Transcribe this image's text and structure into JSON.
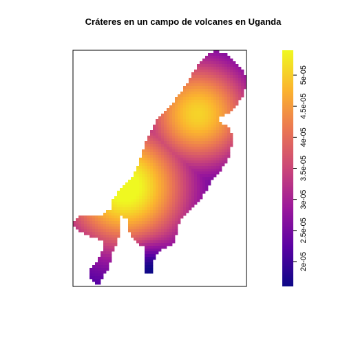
{
  "chart_data": {
    "type": "heatmap",
    "title": "Cráteres en un campo de volcanes en Uganda",
    "xlabel": "",
    "ylabel": "",
    "colormap": "plasma",
    "value_range": [
      1.6e-05,
      5.4e-05
    ],
    "colorbar": {
      "ticks": [
        2e-05,
        2.5e-05,
        3e-05,
        3.5e-05,
        4e-05,
        4.5e-05,
        5e-05
      ],
      "tick_labels": [
        "2e-05",
        "2.5e-05",
        "3e-05",
        "3.5e-05",
        "4e-05",
        "4.5e-05",
        "5e-05"
      ],
      "placement": "right"
    },
    "palette": [
      "#0d0887",
      "#5b02a3",
      "#9a179b",
      "#cb4678",
      "#eb7852",
      "#fbb32f",
      "#eff821"
    ],
    "grid": false,
    "legend_placement": "right",
    "hot_spots": [
      {
        "x": 0.3,
        "y": 0.42,
        "value": 5.4e-05
      },
      {
        "x": 0.72,
        "y": 0.73,
        "value": 4.9e-05
      }
    ],
    "low_spot": {
      "x": 0.45,
      "y": 0.06,
      "value": 1.6e-05
    }
  }
}
